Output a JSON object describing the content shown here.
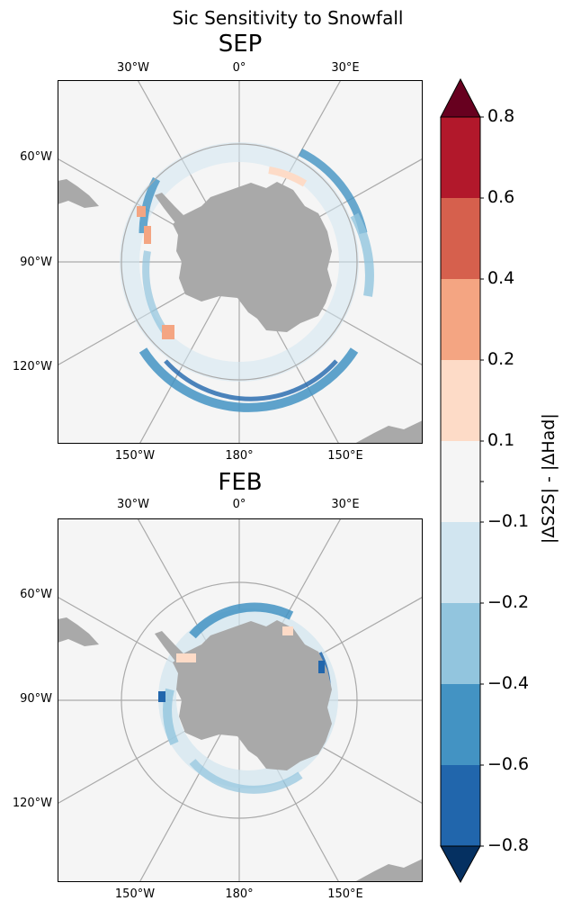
{
  "title": "Sic Sensitivity to Snowfall",
  "panels": [
    {
      "name": "SEP",
      "top_ticks": [
        "30°W",
        "0°",
        "30°E"
      ],
      "left_ticks": [
        "60°W",
        "90°W",
        "120°W"
      ],
      "bottom_ticks": [
        "150°W",
        "180°",
        "150°E"
      ]
    },
    {
      "name": "FEB",
      "top_ticks": [
        "30°W",
        "0°",
        "30°E"
      ],
      "left_ticks": [
        "60°W",
        "90°W",
        "120°W"
      ],
      "bottom_ticks": [
        "150°W",
        "180°",
        "150°E"
      ]
    }
  ],
  "colorbar": {
    "label": "|ΔS2S| - |ΔHad|",
    "ticks": [
      "0.8",
      "0.6",
      "0.4",
      "0.2",
      "0.1",
      "",
      "−0.1",
      "−0.2",
      "−0.4",
      "−0.6",
      "−0.8"
    ],
    "levels": [
      -0.8,
      -0.6,
      -0.4,
      -0.2,
      -0.1,
      0.1,
      0.2,
      0.4,
      0.6,
      0.8
    ],
    "colors": [
      "#2166ac",
      "#4393c3",
      "#92c5de",
      "#d1e5f0",
      "#f5f5f5",
      "#fddbc7",
      "#f4a582",
      "#d6604d",
      "#b2182b"
    ],
    "under_color": "#053061",
    "over_color": "#67001f",
    "extend": "both"
  },
  "map_colors": {
    "background": "#f5f5f5",
    "land": "#a9a9a9",
    "grid": "#aaaaaa"
  }
}
